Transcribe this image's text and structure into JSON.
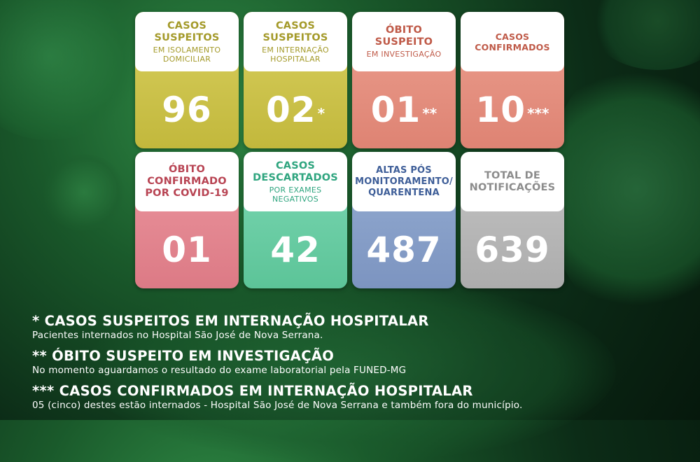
{
  "colors": {
    "olive": "#c9c044",
    "olive_text": "#a49a2a",
    "salmon": "#e49180",
    "salmon_text": "#bf5a48",
    "pink": "#e48a93",
    "pink_text": "#b84453",
    "mint": "#6fcfa8",
    "mint_text": "#2fa57f",
    "blue": "#8aa1c8",
    "blue_text": "#3e5e98",
    "gray": "#b8b8b8",
    "gray_text": "#8c8c8c"
  },
  "cards": [
    {
      "title": "CASOS SUSPEITOS",
      "subtitle": "EM ISOLAMENTO DOMICILIAR",
      "value": "96",
      "mark": ""
    },
    {
      "title": "CASOS SUSPEITOS",
      "subtitle": "EM INTERNAÇÃO HOSPITALAR",
      "value": "02",
      "mark": "*"
    },
    {
      "title": "ÓBITO SUSPEITO",
      "subtitle": "EM INVESTIGAÇÃO",
      "value": "01",
      "mark": "**"
    },
    {
      "title": "CASOS CONFIRMADOS",
      "subtitle": "",
      "value": "10",
      "mark": "***"
    },
    {
      "title": "ÓBITO CONFIRMADO POR COVID-19",
      "subtitle": "",
      "value": "01",
      "mark": ""
    },
    {
      "title": "CASOS DESCARTADOS",
      "subtitle": "POR EXAMES NEGATIVOS",
      "value": "42",
      "mark": ""
    },
    {
      "title": "ALTAS PÓS MONITORAMENTO/ QUARENTENA",
      "subtitle": "",
      "value": "487",
      "mark": ""
    },
    {
      "title": "TOTAL DE NOTIFICAÇÕES",
      "subtitle": "",
      "value": "639",
      "mark": ""
    }
  ],
  "notes": [
    {
      "title": "* CASOS SUSPEITOS EM INTERNAÇÃO HOSPITALAR",
      "text": "Pacientes internados no Hospital São José de Nova Serrana."
    },
    {
      "title": "** ÓBITO SUSPEITO EM INVESTIGAÇÃO",
      "text": "No momento aguardamos o resultado do exame laboratorial pela FUNED-MG"
    },
    {
      "title": "*** CASOS CONFIRMADOS EM INTERNAÇÃO HOSPITALAR",
      "text": "05 (cinco) destes estão internados - Hospital São José de Nova Serrana e também fora do município."
    }
  ]
}
